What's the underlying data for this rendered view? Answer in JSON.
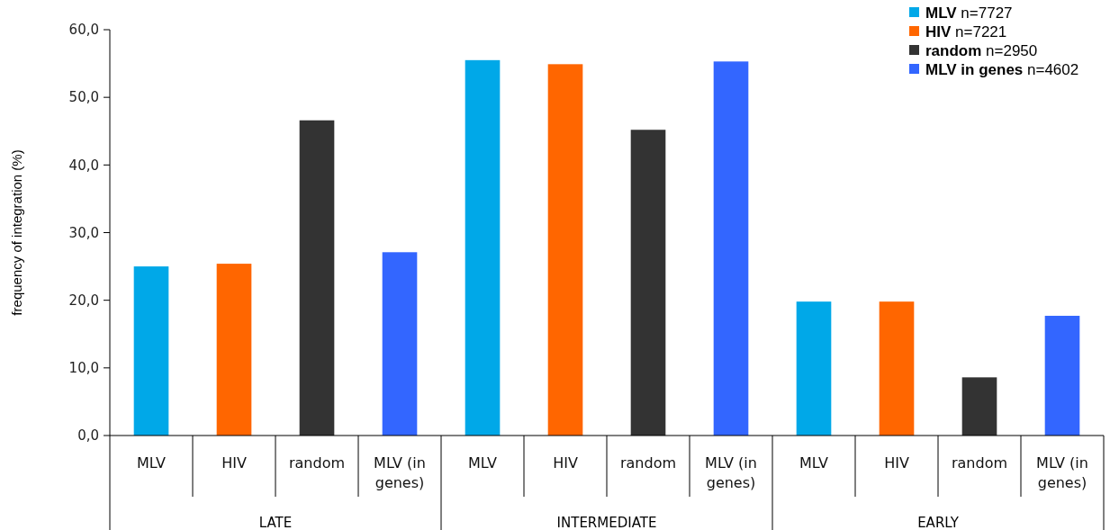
{
  "chart_data": {
    "type": "bar",
    "ylabel": "frequency of integration (%)",
    "categories": [
      "MLV",
      "HIV",
      "random",
      "MLV (in genes)",
      "MLV",
      "HIV",
      "random",
      "MLV (in genes)",
      "MLV",
      "HIV",
      "random",
      "MLV (in genes)"
    ],
    "series": [
      {
        "name": "MLV n=7727",
        "color": "#00a8e8",
        "values": [
          25.0,
          null,
          null,
          null,
          55.5,
          null,
          null,
          null,
          19.8,
          null,
          null,
          null
        ]
      },
      {
        "name": "HIV n=7221",
        "color": "#ff6600",
        "values": [
          null,
          25.4,
          null,
          null,
          null,
          54.9,
          null,
          null,
          null,
          19.8,
          null,
          null
        ]
      },
      {
        "name": "random n=2950",
        "color": "#333333",
        "values": [
          null,
          null,
          46.6,
          null,
          null,
          null,
          45.2,
          null,
          null,
          null,
          8.6,
          null
        ]
      },
      {
        "name": "MLV in genes n=4602",
        "color": "#3366ff",
        "values": [
          null,
          null,
          null,
          27.1,
          null,
          null,
          null,
          55.3,
          null,
          null,
          null,
          17.7
        ]
      }
    ],
    "ylim": [
      0,
      60
    ],
    "yticks": [
      {
        "value": 0,
        "label": "0,0"
      },
      {
        "value": 10,
        "label": "10,0"
      },
      {
        "value": 20,
        "label": "20,0"
      },
      {
        "value": 30,
        "label": "30,0"
      },
      {
        "value": 40,
        "label": "40,0"
      },
      {
        "value": 50,
        "label": "50,0"
      },
      {
        "value": 60,
        "label": "60,0"
      }
    ],
    "annotations": [
      "LATE",
      "INTERMEDIATE",
      "EARLY"
    ],
    "legend": "top right",
    "grid": false
  }
}
